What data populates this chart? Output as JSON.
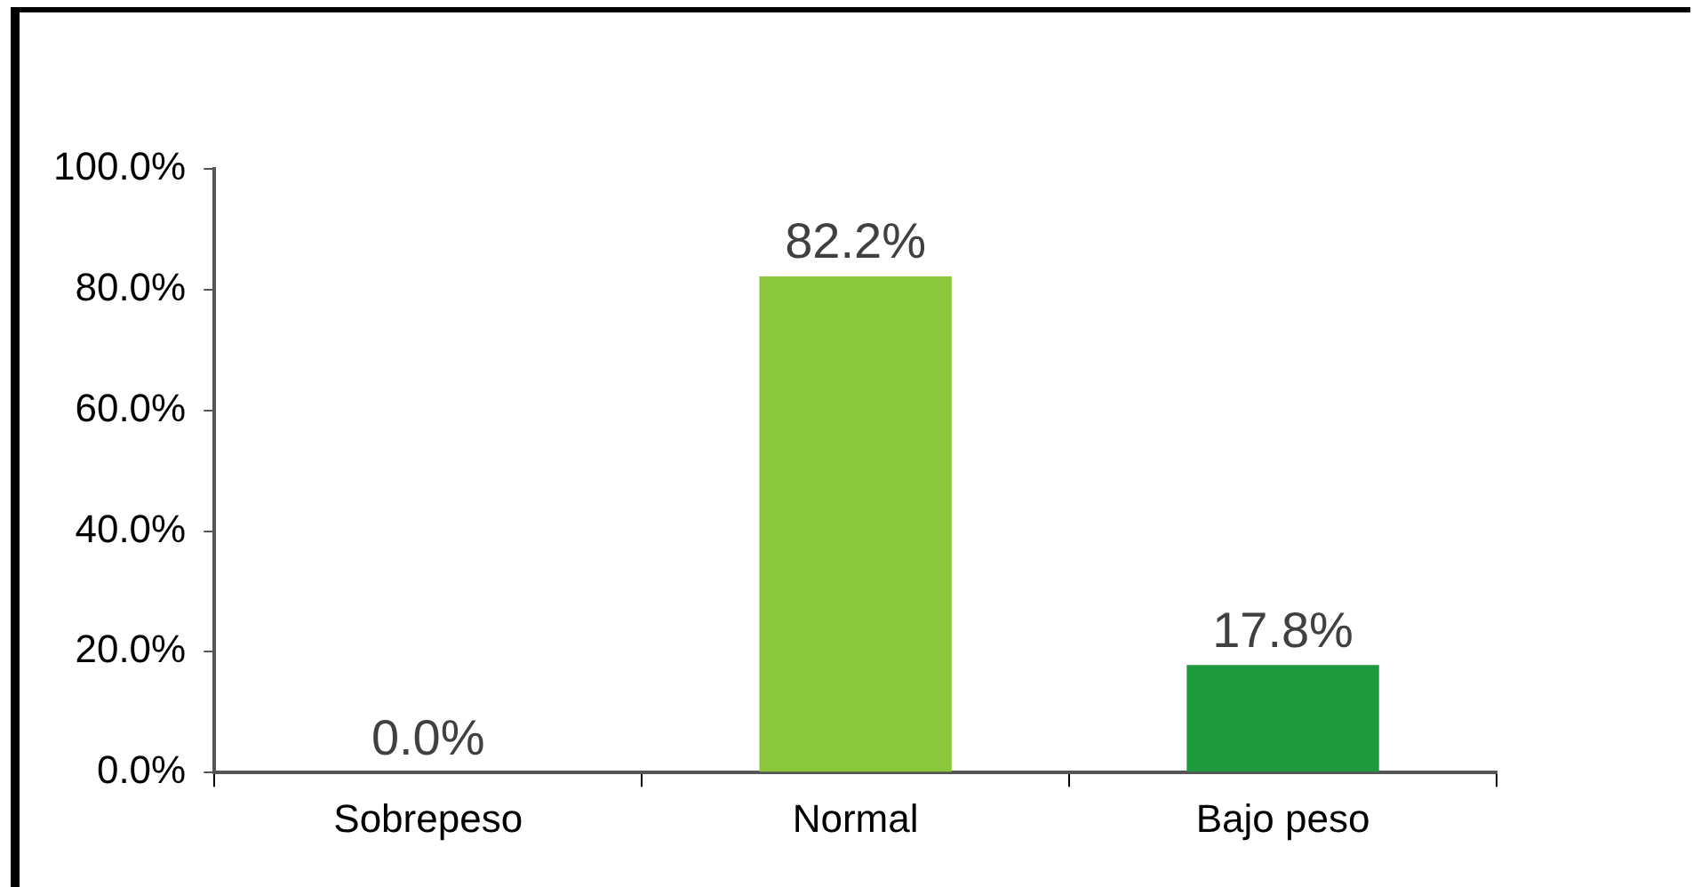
{
  "chart_data": {
    "type": "bar",
    "categories": [
      "Sobrepeso",
      "Normal",
      "Bajo peso"
    ],
    "values": [
      0.0,
      82.2,
      17.8
    ],
    "colors": [
      "#3f6b25",
      "#8cc83c",
      "#1e9a3c"
    ],
    "value_labels": [
      "0.0%",
      "82.2%",
      "17.8%"
    ],
    "ylim": [
      0,
      100
    ],
    "yticks": [
      {
        "value": 0,
        "label": "0.0%"
      },
      {
        "value": 20,
        "label": "20.0%"
      },
      {
        "value": 40,
        "label": "40.0%"
      },
      {
        "value": 60,
        "label": "60.0%"
      },
      {
        "value": 80,
        "label": "80.0%"
      },
      {
        "value": 100,
        "label": "100.0%"
      }
    ],
    "grid": false,
    "legend": false
  }
}
